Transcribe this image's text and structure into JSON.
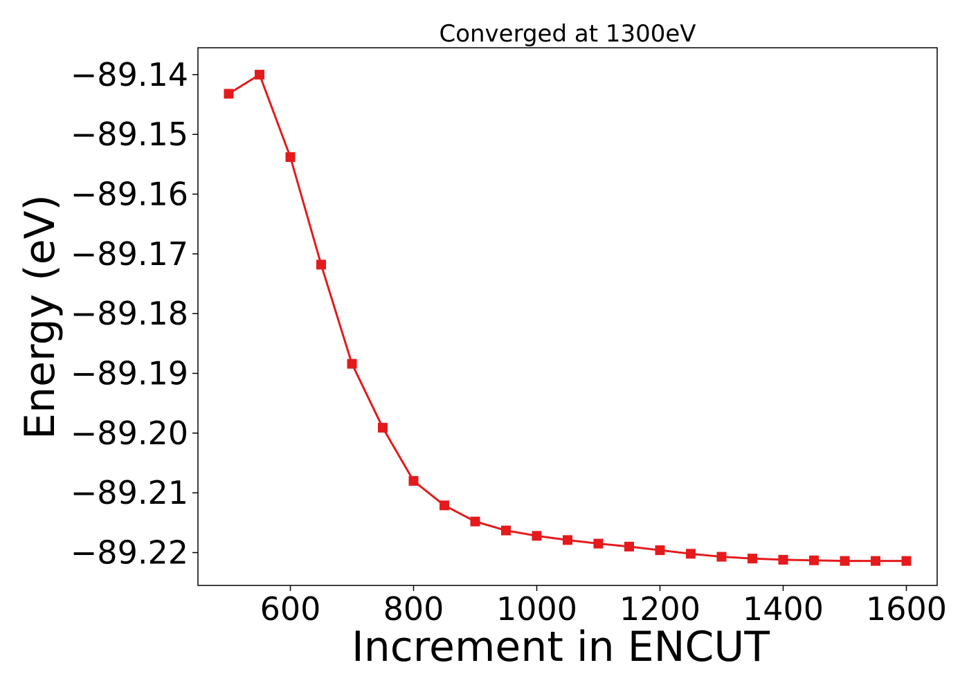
{
  "chart_data": {
    "type": "line",
    "title": "Converged at 1300eV",
    "xlabel": "Increment in ENCUT",
    "ylabel": "Energy (eV)",
    "xlim": [
      450,
      1650
    ],
    "ylim": [
      -89.2255,
      -89.1355
    ],
    "xticks": [
      600,
      800,
      1000,
      1200,
      1400,
      1600
    ],
    "yticks": [
      -89.14,
      -89.15,
      -89.16,
      -89.17,
      -89.18,
      -89.19,
      -89.2,
      -89.21,
      -89.22
    ],
    "xtick_labels": [
      "600",
      "800",
      "1000",
      "1200",
      "1400",
      "1600"
    ],
    "ytick_labels": [
      "−89.14",
      "−89.15",
      "−89.16",
      "−89.17",
      "−89.18",
      "−89.19",
      "−89.20",
      "−89.21",
      "−89.22"
    ],
    "grid": false,
    "series": [
      {
        "color": "#e41a1c",
        "marker": "square",
        "x": [
          500,
          550,
          600,
          650,
          700,
          750,
          800,
          850,
          900,
          950,
          1000,
          1050,
          1100,
          1150,
          1200,
          1250,
          1300,
          1350,
          1400,
          1450,
          1500,
          1550,
          1600
        ],
        "values": [
          -89.1432,
          -89.14,
          -89.1538,
          -89.1718,
          -89.1884,
          -89.1991,
          -89.208,
          -89.2121,
          -89.2148,
          -89.2163,
          -89.2172,
          -89.2179,
          -89.2185,
          -89.219,
          -89.2196,
          -89.2202,
          -89.2207,
          -89.221,
          -89.2212,
          -89.2213,
          -89.2214,
          -89.2214,
          -89.2214
        ]
      }
    ]
  }
}
